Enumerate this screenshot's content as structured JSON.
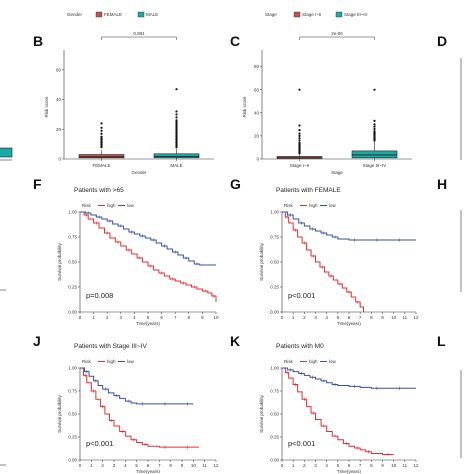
{
  "panel_letters": [
    "B",
    "C",
    "D",
    "F",
    "G",
    "H",
    "J",
    "K",
    "L"
  ],
  "chart_data": [
    {
      "id": "B",
      "type": "box",
      "legend_title": "Gender",
      "legend": [
        {
          "label": "FEMALE",
          "color": "#c0504d"
        },
        {
          "label": "MALE",
          "color": "#1aa9a6"
        }
      ],
      "categories": [
        "FEMALE",
        "MALE"
      ],
      "xlabel": "Gender",
      "ylabel": "Risk score",
      "ylim": [
        0,
        70
      ],
      "yticks": [
        "0",
        "20",
        "40",
        "60"
      ],
      "pvalue_label": "0.891",
      "boxes": [
        {
          "q1": 0.8,
          "median": 1.5,
          "q3": 3.0,
          "wlow": 0,
          "whigh": 6,
          "outliers": [
            8,
            9,
            10,
            11,
            12,
            13,
            14,
            15,
            17,
            19,
            21,
            24
          ]
        },
        {
          "q1": 0.8,
          "median": 1.7,
          "q3": 3.5,
          "wlow": 0,
          "whigh": 7,
          "outliers": [
            8,
            9,
            10,
            11,
            12,
            13,
            14,
            15,
            16,
            17,
            18,
            19,
            20,
            21,
            22,
            23,
            24,
            25,
            26,
            28,
            30,
            32,
            47
          ]
        }
      ]
    },
    {
      "id": "C",
      "type": "box",
      "legend_title": "Stage",
      "legend": [
        {
          "label": "Stage I~II",
          "color": "#c0504d"
        },
        {
          "label": "Stage III~IV",
          "color": "#1aa9a6"
        }
      ],
      "categories": [
        "Stage I~II",
        "Stage III~IV"
      ],
      "xlabel": "Stage",
      "ylabel": "Risk score",
      "ylim": [
        0,
        90
      ],
      "yticks": [
        "0",
        "20",
        "40",
        "60",
        "80"
      ],
      "pvalue_label": "2e-06",
      "boxes": [
        {
          "q1": 0.5,
          "median": 1.0,
          "q3": 2.2,
          "wlow": 0,
          "whigh": 4,
          "outliers": [
            5,
            6,
            7,
            8,
            9,
            10,
            11,
            12,
            13,
            14,
            16,
            18,
            20,
            22,
            25,
            29,
            60
          ]
        },
        {
          "q1": 1.0,
          "median": 3.5,
          "q3": 7.0,
          "wlow": 0,
          "whigh": 15,
          "outliers": [
            16,
            17,
            18,
            19,
            20,
            21,
            22,
            23,
            24,
            26,
            28,
            30,
            33,
            60
          ]
        }
      ]
    },
    {
      "id": "F",
      "type": "line",
      "title": "Patients with >65",
      "legend_title": "Risk",
      "legend": [
        {
          "label": "high",
          "color": "#e03030"
        },
        {
          "label": "low",
          "color": "#3a4fa0"
        }
      ],
      "xlabel": "Time(years)",
      "ylabel": "Survival probability",
      "pvalue_label": "p=0.008",
      "xlim": [
        0,
        10
      ],
      "xticks": [
        "0",
        "1",
        "2",
        "3",
        "4",
        "5",
        "6",
        "7",
        "8",
        "9",
        "10"
      ],
      "ylim": [
        0,
        1
      ],
      "yticks": [
        "0.00",
        "0.25",
        "0.50",
        "0.75",
        "1.00"
      ],
      "series": [
        {
          "name": "high",
          "color": "#e03030",
          "x": [
            0,
            0.3,
            0.6,
            1.0,
            1.4,
            1.8,
            2.2,
            2.6,
            3.0,
            3.4,
            3.8,
            4.2,
            4.6,
            5.0,
            5.4,
            5.8,
            6.2,
            6.6,
            7.0,
            7.4,
            7.8,
            8.2,
            8.6,
            9.0,
            9.4,
            9.7,
            10.0
          ],
          "y": [
            1.0,
            0.97,
            0.93,
            0.89,
            0.84,
            0.79,
            0.74,
            0.7,
            0.66,
            0.62,
            0.58,
            0.54,
            0.5,
            0.46,
            0.42,
            0.39,
            0.36,
            0.33,
            0.31,
            0.29,
            0.27,
            0.25,
            0.23,
            0.21,
            0.19,
            0.16,
            0.1
          ]
        },
        {
          "name": "low",
          "color": "#3a4fa0",
          "x": [
            0,
            0.4,
            0.8,
            1.2,
            1.6,
            2.0,
            2.4,
            2.8,
            3.2,
            3.6,
            4.0,
            4.4,
            4.8,
            5.2,
            5.6,
            6.0,
            6.4,
            6.8,
            7.2,
            7.6,
            8.0,
            8.4,
            8.8,
            10.0
          ],
          "y": [
            1.0,
            0.99,
            0.97,
            0.95,
            0.93,
            0.91,
            0.88,
            0.86,
            0.83,
            0.8,
            0.78,
            0.76,
            0.74,
            0.72,
            0.69,
            0.66,
            0.63,
            0.6,
            0.57,
            0.54,
            0.51,
            0.48,
            0.47,
            0.47
          ]
        }
      ]
    },
    {
      "id": "G",
      "type": "line",
      "title": "Patients with FEMALE",
      "legend_title": "Risk",
      "legend": [
        {
          "label": "high",
          "color": "#e03030"
        },
        {
          "label": "low",
          "color": "#3a4fa0"
        }
      ],
      "xlabel": "Time(years)",
      "ylabel": "Survival probability",
      "pvalue_label": "p<0.001",
      "xlim": [
        0,
        12
      ],
      "xticks": [
        "0",
        "1",
        "2",
        "3",
        "4",
        "5",
        "6",
        "7",
        "8",
        "9",
        "10",
        "11",
        "12"
      ],
      "ylim": [
        0,
        1
      ],
      "yticks": [
        "0.00",
        "0.25",
        "0.50",
        "0.75",
        "1.00"
      ],
      "series": [
        {
          "name": "high",
          "color": "#e03030",
          "x": [
            0,
            0.3,
            0.6,
            1.0,
            1.4,
            1.8,
            2.2,
            2.6,
            3.0,
            3.4,
            3.8,
            4.2,
            4.6,
            5.0,
            5.4,
            5.8,
            6.2,
            6.6,
            7.0,
            7.3
          ],
          "y": [
            1.0,
            0.95,
            0.89,
            0.82,
            0.75,
            0.69,
            0.62,
            0.56,
            0.5,
            0.45,
            0.4,
            0.36,
            0.32,
            0.28,
            0.24,
            0.2,
            0.15,
            0.1,
            0.05,
            0.0
          ]
        },
        {
          "name": "low",
          "color": "#3a4fa0",
          "x": [
            0,
            0.5,
            1.0,
            1.5,
            2.0,
            2.5,
            3.0,
            3.5,
            4.0,
            4.5,
            5.0,
            6.0,
            7.0,
            8.0,
            9.0,
            10.0,
            11.0,
            12.0
          ],
          "y": [
            1.0,
            0.97,
            0.93,
            0.89,
            0.86,
            0.83,
            0.81,
            0.79,
            0.77,
            0.75,
            0.73,
            0.72,
            0.72,
            0.72,
            0.72,
            0.72,
            0.72,
            0.72
          ]
        }
      ]
    },
    {
      "id": "J",
      "type": "line",
      "title": "Patients with Stage III~IV",
      "legend_title": "Risk",
      "legend": [
        {
          "label": "high",
          "color": "#e03030"
        },
        {
          "label": "low",
          "color": "#3a4fa0"
        }
      ],
      "xlabel": "Time(years)",
      "ylabel": "Survival probability",
      "pvalue_label": "p<0.001",
      "xlim": [
        0,
        12
      ],
      "xticks": [
        "0",
        "1",
        "2",
        "3",
        "4",
        "5",
        "6",
        "7",
        "8",
        "9",
        "10",
        "11",
        "12"
      ],
      "ylim": [
        0,
        1
      ],
      "yticks": [
        "0.00",
        "0.25",
        "0.50",
        "0.75",
        "1.00"
      ],
      "series": [
        {
          "name": "high",
          "color": "#e03030",
          "x": [
            0,
            0.3,
            0.6,
            1.0,
            1.4,
            1.8,
            2.2,
            2.6,
            3.0,
            3.5,
            4.0,
            4.5,
            5.0,
            5.5,
            6.0,
            7.0,
            8.0,
            9.0,
            10.0,
            10.5
          ],
          "y": [
            1.0,
            0.92,
            0.84,
            0.75,
            0.66,
            0.58,
            0.5,
            0.43,
            0.37,
            0.31,
            0.26,
            0.22,
            0.19,
            0.17,
            0.15,
            0.14,
            0.14,
            0.14,
            0.14,
            0.14
          ]
        },
        {
          "name": "low",
          "color": "#3a4fa0",
          "x": [
            0,
            0.4,
            0.8,
            1.2,
            1.6,
            2.0,
            2.5,
            3.0,
            3.5,
            4.0,
            4.5,
            5.0,
            6.0,
            7.0,
            8.0,
            9.0,
            10.0
          ],
          "y": [
            1.0,
            0.96,
            0.91,
            0.86,
            0.81,
            0.77,
            0.73,
            0.7,
            0.67,
            0.64,
            0.62,
            0.61,
            0.61,
            0.61,
            0.61,
            0.61,
            0.61
          ]
        }
      ]
    },
    {
      "id": "K",
      "type": "line",
      "title": "Patients with M0",
      "legend_title": "Risk",
      "legend": [
        {
          "label": "high",
          "color": "#e03030"
        },
        {
          "label": "low",
          "color": "#3a4fa0"
        }
      ],
      "xlabel": "Time(years)",
      "ylabel": "Survival probability",
      "pvalue_label": "p<0.001",
      "xlim": [
        0,
        12
      ],
      "xticks": [
        "0",
        "1",
        "2",
        "3",
        "4",
        "5",
        "6",
        "7",
        "8",
        "9",
        "10",
        "11",
        "12"
      ],
      "ylim": [
        0,
        1
      ],
      "yticks": [
        "0.00",
        "0.25",
        "0.50",
        "0.75",
        "1.00"
      ],
      "series": [
        {
          "name": "high",
          "color": "#e03030",
          "x": [
            0,
            0.3,
            0.6,
            1.0,
            1.4,
            1.8,
            2.2,
            2.6,
            3.0,
            3.5,
            4.0,
            4.5,
            5.0,
            5.5,
            6.0,
            6.5,
            7.0,
            7.5,
            8.0,
            9.0,
            10.0
          ],
          "y": [
            1.0,
            0.95,
            0.89,
            0.82,
            0.74,
            0.66,
            0.58,
            0.51,
            0.44,
            0.37,
            0.31,
            0.26,
            0.22,
            0.18,
            0.15,
            0.13,
            0.11,
            0.09,
            0.07,
            0.06,
            0.06
          ]
        },
        {
          "name": "low",
          "color": "#3a4fa0",
          "x": [
            0,
            0.5,
            1.0,
            1.5,
            2.0,
            2.5,
            3.0,
            3.5,
            4.0,
            4.5,
            5.0,
            6.0,
            7.0,
            8.0,
            9.0,
            10.0,
            11.0,
            12.0
          ],
          "y": [
            1.0,
            0.98,
            0.96,
            0.94,
            0.92,
            0.9,
            0.88,
            0.86,
            0.84,
            0.82,
            0.81,
            0.8,
            0.79,
            0.78,
            0.78,
            0.78,
            0.78,
            0.78
          ]
        }
      ]
    }
  ]
}
